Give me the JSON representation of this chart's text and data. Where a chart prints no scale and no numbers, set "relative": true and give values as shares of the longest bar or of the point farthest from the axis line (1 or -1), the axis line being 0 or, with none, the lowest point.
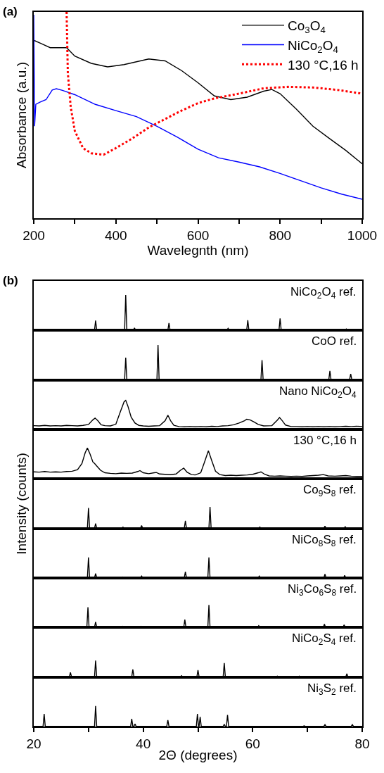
{
  "chart_data": [
    {
      "type": "line",
      "relative": true,
      "xlabel": "Wavelegnth (nm)",
      "ylabel": "Absorbance (a.u.)",
      "annotations": [
        "(a)"
      ],
      "legend": "top right",
      "xlim": [
        200,
        1000
      ],
      "xticks": [
        200,
        {
          "value": 300,
          "label": null
        },
        400,
        {
          "value": 500,
          "label": null
        },
        600,
        {
          "value": 700,
          "label": null
        },
        800,
        {
          "value": 900,
          "label": null
        },
        1000
      ],
      "series": [
        {
          "name": "Co$_{3}$O$_{4}$",
          "color": "#000000",
          "line_style": "solid",
          "x": [
            200,
            220,
            240,
            280,
            300,
            340,
            380,
            420,
            480,
            520,
            560,
            600,
            640,
            680,
            720,
            760,
            780,
            800,
            840,
            880,
            920,
            960,
            1000
          ],
          "values": [
            0.863,
            0.845,
            0.827,
            0.827,
            0.786,
            0.751,
            0.734,
            0.745,
            0.772,
            0.763,
            0.716,
            0.657,
            0.593,
            0.575,
            0.587,
            0.616,
            0.624,
            0.604,
            0.528,
            0.446,
            0.387,
            0.329,
            0.264
          ]
        },
        {
          "name": "NiCo$_{2}$O$_{4}$",
          "color": "#0000ff",
          "line_style": "solid",
          "x": [
            200,
            202,
            205,
            215,
            230,
            245,
            255,
            270,
            300,
            350,
            400,
            450,
            500,
            550,
            600,
            650,
            700,
            750,
            800,
            850,
            900,
            950,
            1000
          ],
          "values": [
            0.986,
            0.446,
            0.552,
            0.563,
            0.575,
            0.622,
            0.628,
            0.62,
            0.599,
            0.552,
            0.522,
            0.493,
            0.446,
            0.393,
            0.335,
            0.293,
            0.272,
            0.249,
            0.217,
            0.182,
            0.147,
            0.117,
            0.092
          ]
        },
        {
          "name": "130 °C,16 h",
          "color": "#ff0000",
          "line_style": "dotted",
          "x": [
            280,
            283,
            290,
            300,
            320,
            340,
            370,
            400,
            440,
            480,
            520,
            560,
            600,
            640,
            700,
            760,
            820,
            880,
            940,
            1000
          ],
          "values": [
            1.0,
            0.704,
            0.54,
            0.423,
            0.34,
            0.315,
            0.308,
            0.34,
            0.387,
            0.44,
            0.481,
            0.522,
            0.558,
            0.581,
            0.604,
            0.63,
            0.637,
            0.634,
            0.622,
            0.604
          ]
        }
      ]
    },
    {
      "type": "line",
      "relative": true,
      "annotations": [
        "(b)"
      ],
      "legend": false,
      "tick_labels": false,
      "xlim": [
        20,
        80
      ],
      "series": [
        {
          "name": "NiCo$_{2}$O$_{4}$ ref.",
          "color": "#000000",
          "x": [
            20,
            31.1,
            31.3,
            31.5,
            36.6,
            36.8,
            37.0,
            38.2,
            38.4,
            38.6,
            44.5,
            44.7,
            44.9,
            55.3,
            55.5,
            55.7,
            58.9,
            59.1,
            59.3,
            64.8,
            65.0,
            65.2,
            73.8,
            74.0,
            74.2,
            76.9,
            77.1,
            77.3,
            77.9,
            78.1,
            78.3,
            80
          ],
          "values": [
            0.01,
            0.01,
            0.28,
            0.01,
            0.01,
            1,
            0.01,
            0.01,
            0.07,
            0.01,
            0.01,
            0.21,
            0.01,
            0.01,
            0.06,
            0.01,
            0.01,
            0.29,
            0.01,
            0.01,
            0.34,
            0.01,
            0.01,
            0.03,
            0.01,
            0.01,
            0.04,
            0.01,
            0.01,
            0.03,
            0.01,
            0.01
          ]
        }
      ]
    },
    {
      "type": "line",
      "relative": true,
      "legend": false,
      "tick_labels": false,
      "xlim": [
        20,
        80
      ],
      "series": [
        {
          "name": "CoO ref.",
          "color": "#000000",
          "x": [
            20,
            36.6,
            36.8,
            37.0,
            42.5,
            42.7,
            42.9,
            61.5,
            61.7,
            61.9,
            73.9,
            74.1,
            74.3,
            77.7,
            77.9,
            78.1,
            80
          ],
          "values": [
            0.01,
            0.01,
            0.64,
            0.01,
            0.01,
            1,
            0.01,
            0.01,
            0.57,
            0.01,
            0.01,
            0.26,
            0.01,
            0.01,
            0.17,
            0.01,
            0.01
          ]
        }
      ]
    },
    {
      "type": "line",
      "relative": true,
      "legend": false,
      "tick_labels": false,
      "xlim": [
        20,
        80
      ],
      "series": [
        {
          "name": "Nano NiCo$_{2}$O$_{4}$",
          "color": "#000000",
          "x": [
            20,
            21,
            22,
            23,
            24,
            25,
            26,
            27,
            28,
            29,
            30,
            30.8,
            31.2,
            31.7,
            32.3,
            33,
            34,
            35,
            35.8,
            36.5,
            36.8,
            37.2,
            37.8,
            38.5,
            39.2,
            40,
            41,
            42,
            43,
            44,
            44.5,
            45,
            45.6,
            46.5,
            47.5,
            48.5,
            49.5,
            50.5,
            51.5,
            52.5,
            53.5,
            54.5,
            55.5,
            56.5,
            57.5,
            58.5,
            58.9,
            59.5,
            60.3,
            61,
            62,
            63.5,
            64.5,
            64.9,
            65.4,
            66,
            67,
            68,
            69,
            70,
            71,
            72,
            73,
            74,
            75,
            76,
            77,
            78,
            79,
            80
          ],
          "values": [
            0.13,
            0.12,
            0.14,
            0.12,
            0.13,
            0.12,
            0.14,
            0.13,
            0.12,
            0.14,
            0.17,
            0.33,
            0.39,
            0.3,
            0.16,
            0.13,
            0.12,
            0.18,
            0.6,
            0.95,
            1,
            0.8,
            0.42,
            0.22,
            0.14,
            0.12,
            0.11,
            0.12,
            0.13,
            0.3,
            0.49,
            0.3,
            0.14,
            0.1,
            0.09,
            0.1,
            0.09,
            0.1,
            0.09,
            0.11,
            0.1,
            0.12,
            0.13,
            0.16,
            0.22,
            0.3,
            0.35,
            0.33,
            0.25,
            0.17,
            0.12,
            0.13,
            0.32,
            0.41,
            0.3,
            0.15,
            0.1,
            0.1,
            0.09,
            0.1,
            0.09,
            0.1,
            0.09,
            0.1,
            0.09,
            0.1,
            0.11,
            0.1,
            0.11,
            0.1
          ]
        }
      ]
    },
    {
      "type": "line",
      "relative": true,
      "legend": false,
      "tick_labels": false,
      "xlim": [
        20,
        80
      ],
      "series": [
        {
          "name": "130 °C,16 h",
          "color": "#000000",
          "x": [
            20,
            21,
            22,
            23,
            24,
            25,
            26,
            27,
            28,
            28.8,
            29.4,
            29.8,
            30.3,
            30.8,
            31.1,
            31.6,
            32.2,
            33,
            34,
            35,
            36,
            37,
            38,
            39,
            39.4,
            40,
            41,
            42,
            42.4,
            43,
            44,
            45,
            46,
            46.8,
            47.4,
            48,
            48.8,
            49.5,
            50.5,
            51.2,
            51.9,
            52.5,
            53.2,
            54,
            55,
            56,
            57,
            58,
            59,
            60,
            61,
            61.5,
            62.2,
            63,
            64,
            65,
            66,
            67,
            68,
            69,
            70,
            71,
            72,
            72.9,
            73.8,
            75,
            76,
            77,
            78,
            79,
            80
          ],
          "values": [
            0.23,
            0.22,
            0.24,
            0.22,
            0.23,
            0.22,
            0.24,
            0.25,
            0.3,
            0.5,
            0.85,
            1,
            0.8,
            0.55,
            0.5,
            0.4,
            0.28,
            0.2,
            0.18,
            0.17,
            0.19,
            0.18,
            0.19,
            0.24,
            0.27,
            0.2,
            0.17,
            0.2,
            0.21,
            0.16,
            0.15,
            0.14,
            0.16,
            0.28,
            0.35,
            0.22,
            0.14,
            0.13,
            0.2,
            0.55,
            0.91,
            0.6,
            0.25,
            0.14,
            0.11,
            0.12,
            0.11,
            0.12,
            0.13,
            0.15,
            0.2,
            0.23,
            0.15,
            0.1,
            0.09,
            0.1,
            0.09,
            0.08,
            0.09,
            0.08,
            0.1,
            0.11,
            0.12,
            0.14,
            0.1,
            0.09,
            0.1,
            0.11,
            0.09,
            0.08,
            0.08
          ]
        }
      ]
    },
    {
      "type": "line",
      "relative": true,
      "legend": false,
      "tick_labels": false,
      "xlim": [
        20,
        80
      ],
      "ylabel": "Intensity (counts)",
      "series": [
        {
          "name": "Co$_{9}$S$_{8}$ ref.",
          "color": "#000000",
          "x": [
            20,
            25.2,
            25.4,
            25.6,
            29.8,
            30.0,
            30.2,
            31.1,
            31.3,
            31.5,
            36.1,
            36.3,
            36.5,
            39.5,
            39.7,
            39.9,
            47.5,
            47.7,
            47.9,
            52.0,
            52.2,
            52.4,
            54.6,
            54.8,
            55.0,
            61.1,
            61.3,
            61.5,
            73.0,
            73.2,
            73.4,
            76.7,
            76.9,
            77.1,
            80
          ],
          "values": [
            0.01,
            0.01,
            0.03,
            0.01,
            0.01,
            0.95,
            0.01,
            0.01,
            0.23,
            0.01,
            0.01,
            0.06,
            0.01,
            0.01,
            0.14,
            0.01,
            0.01,
            0.35,
            0.01,
            0.01,
            1,
            0.01,
            0.01,
            0.03,
            0.01,
            0.01,
            0.07,
            0.01,
            0.01,
            0.11,
            0.01,
            0.01,
            0.08,
            0.01,
            0.01
          ]
        }
      ]
    },
    {
      "type": "line",
      "relative": true,
      "legend": false,
      "tick_labels": false,
      "xlim": [
        20,
        80
      ],
      "series": [
        {
          "name": "NiCo$_{8}$S$_{8}$ ref.",
          "color": "#000000",
          "x": [
            20,
            25.3,
            25.5,
            25.7,
            29.8,
            30.0,
            30.2,
            31.1,
            31.3,
            31.5,
            36.1,
            36.3,
            36.5,
            39.5,
            39.7,
            39.9,
            47.5,
            47.7,
            47.9,
            51.8,
            52.0,
            52.2,
            61.0,
            61.2,
            61.4,
            73.0,
            73.2,
            73.4,
            76.6,
            76.8,
            77.0,
            80
          ],
          "values": [
            0.01,
            0.01,
            0.03,
            0.01,
            0.01,
            1,
            0.01,
            0.01,
            0.22,
            0.01,
            0.01,
            0.05,
            0.01,
            0.01,
            0.09,
            0.01,
            0.01,
            0.3,
            0.01,
            0.01,
            1,
            0.01,
            0.01,
            0.09,
            0.01,
            0.01,
            0.19,
            0.01,
            0.01,
            0.13,
            0.01,
            0.01
          ]
        }
      ]
    },
    {
      "type": "line",
      "relative": true,
      "legend": false,
      "tick_labels": false,
      "xlim": [
        20,
        80
      ],
      "series": [
        {
          "name": "Ni$_{3}$Co$_{6}$S$_{8}$ ref.",
          "color": "#000000",
          "x": [
            20,
            25.3,
            25.5,
            25.7,
            29.7,
            29.9,
            30.1,
            31.1,
            31.3,
            31.5,
            36.1,
            36.3,
            36.5,
            39.4,
            39.6,
            39.8,
            47.4,
            47.6,
            47.8,
            51.8,
            52.0,
            52.2,
            60.9,
            61.1,
            61.3,
            72.9,
            73.1,
            73.3,
            76.5,
            76.7,
            76.9,
            80
          ],
          "values": [
            0.01,
            0.01,
            0.03,
            0.01,
            0.01,
            0.9,
            0.01,
            0.01,
            0.25,
            0.01,
            0.01,
            0.05,
            0.01,
            0.01,
            0.05,
            0.01,
            0.01,
            0.35,
            0.01,
            0.01,
            1,
            0.01,
            0.01,
            0.08,
            0.01,
            0.01,
            0.15,
            0.01,
            0.01,
            0.12,
            0.01,
            0.01
          ]
        }
      ]
    },
    {
      "type": "line",
      "relative": true,
      "legend": false,
      "tick_labels": false,
      "xlim": [
        20,
        80
      ],
      "series": [
        {
          "name": "NiCo$_{2}$S$_{4}$ ref.",
          "color": "#000000",
          "x": [
            20,
            26.5,
            26.7,
            26.9,
            31.1,
            31.3,
            31.5,
            37.9,
            38.1,
            38.3,
            46.8,
            47.0,
            47.2,
            49.8,
            50.0,
            50.2,
            54.6,
            54.8,
            55.0,
            64.3,
            64.5,
            64.7,
            68.3,
            68.5,
            68.7,
            77.0,
            77.2,
            77.4,
            80
          ],
          "values": [
            0.01,
            0.01,
            0.28,
            0.01,
            0.01,
            1,
            0.01,
            0.01,
            0.46,
            0.01,
            0.01,
            0.08,
            0.01,
            0.01,
            0.42,
            0.01,
            0.01,
            0.85,
            0.01,
            0.01,
            0.06,
            0.01,
            0.01,
            0.06,
            0.01,
            0.01,
            0.2,
            0.01,
            0.01
          ]
        }
      ]
    },
    {
      "type": "line",
      "relative": true,
      "legend": false,
      "tick_labels": "x",
      "xlim": [
        20,
        80
      ],
      "xlabel": "2Θ (degrees)",
      "xticks": [
        20,
        {
          "value": 30,
          "label": null
        },
        40,
        {
          "value": 50,
          "label": null
        },
        60,
        {
          "value": 70,
          "label": null
        },
        80
      ],
      "series": [
        {
          "name": "Ni$_{3}$S$_{2}$ ref.",
          "color": "#000000",
          "x": [
            20,
            21.7,
            21.9,
            22.1,
            31.1,
            31.3,
            31.5,
            37.7,
            37.9,
            38.1,
            38.3,
            38.5,
            38.7,
            44.3,
            44.5,
            44.7,
            49.7,
            49.9,
            50.1,
            50.2,
            50.4,
            50.6,
            54.6,
            54.8,
            55.0,
            55.2,
            55.4,
            55.6,
            69.2,
            69.4,
            69.6,
            73.0,
            73.2,
            73.4,
            78.0,
            78.2,
            78.4,
            80
          ],
          "values": [
            0.01,
            0.01,
            0.61,
            0.01,
            0.01,
            1,
            0.01,
            0.01,
            0.37,
            0.01,
            0.01,
            0.13,
            0.01,
            0.01,
            0.31,
            0.01,
            0.01,
            0.61,
            0.01,
            0.01,
            0.47,
            0.01,
            0.01,
            0.11,
            0.01,
            0.01,
            0.56,
            0.01,
            0.01,
            0.03,
            0.01,
            0.01,
            0.09,
            0.01,
            0.01,
            0.09,
            0.01,
            0.01
          ]
        }
      ]
    }
  ]
}
